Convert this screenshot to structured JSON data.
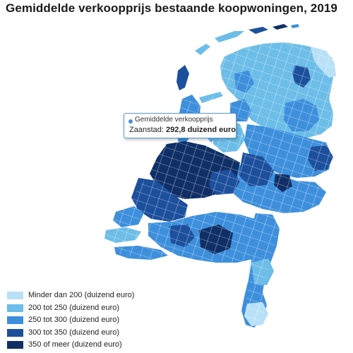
{
  "title": "Gemiddelde verkoopprijs bestaande koopwoningen, 2019",
  "tooltip": {
    "series_label": "Gemiddelde verkoopprijs",
    "municipality": "Zaanstad:",
    "value": "292,8 duizend euro",
    "color": "#4a90d9"
  },
  "legend": {
    "items": [
      {
        "label": "Minder dan 200 (duizend euro)",
        "color": "#b8e0f7"
      },
      {
        "label": "200 tot 250 (duizend euro)",
        "color": "#6cbde8"
      },
      {
        "label": "250 tot 300 (duizend euro)",
        "color": "#3d8fdc"
      },
      {
        "label": "300 tot 350 (duizend euro)",
        "color": "#1c4f9c"
      },
      {
        "label": "350 of meer (duizend euro)",
        "color": "#0f2f66"
      }
    ]
  },
  "map": {
    "country": "Nederland",
    "water_color": "#ffffff",
    "border_color": "#ffffff"
  }
}
